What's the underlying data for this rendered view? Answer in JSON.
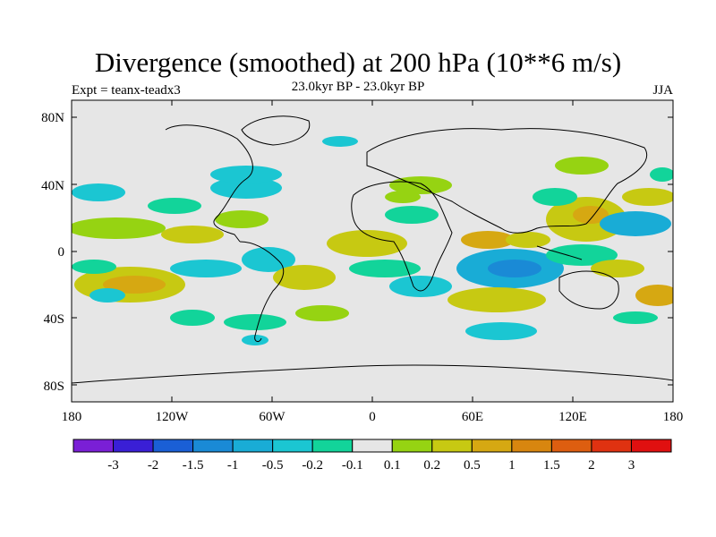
{
  "header": {
    "title": "Divergence (smoothed) at 200 hPa (10**6 m/s)",
    "subtitle": "23.0kyr BP - 23.0kyr BP",
    "experiment": "Expt = teanx-teadx3",
    "season": "JJA"
  },
  "map": {
    "background_color": "#e6e6e6",
    "lat_labels": [
      "80N",
      "40N",
      "0",
      "40S",
      "80S"
    ],
    "lon_labels": [
      "180",
      "120W",
      "60W",
      "0",
      "60E",
      "120E",
      "180"
    ]
  },
  "colorbar": {
    "colors": [
      "#7a1fd6",
      "#3a1fd6",
      "#1a5fd6",
      "#1a8ad6",
      "#19acd6",
      "#1bc6d2",
      "#12d49a",
      "#e6e6e6",
      "#96d312",
      "#c7c912",
      "#d6a812",
      "#d8860f",
      "#dd5e10",
      "#df3211",
      "#e01010"
    ],
    "labels": [
      "-3",
      "-2",
      "-1.5",
      "-1",
      "-0.5",
      "-0.2",
      "-0.1",
      "0.1",
      "0.2",
      "0.5",
      "1",
      "1.5",
      "2",
      "3"
    ]
  }
}
